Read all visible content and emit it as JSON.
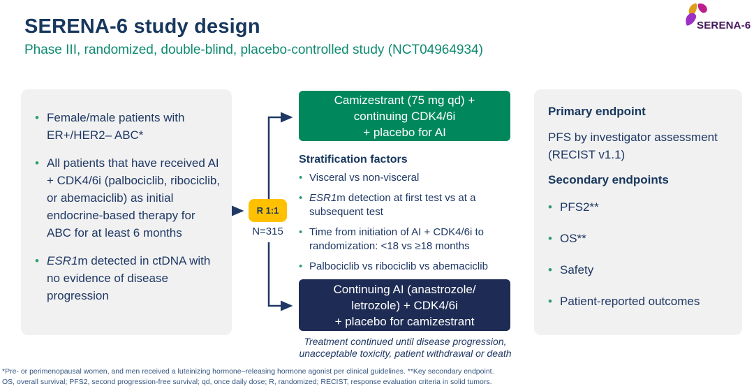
{
  "colors": {
    "title": "#17375D",
    "subtitle": "#0E8A70",
    "body-text": "#1F3864",
    "green-box": "#00885C",
    "navy-box": "#1E2C55",
    "r-box": "#FFC000",
    "panel-bg": "#F1F1F1",
    "bullet": "#2E9E6E",
    "arrow": "#1F3864",
    "arm-text": "#FFFFFF",
    "footnote": "#33557F",
    "logo-text": "#44175B",
    "petal-gold": "#DD9F1B",
    "petal-magenta": "#BE1E8C",
    "petal-purple": "#9C2FC4"
  },
  "header": {
    "title": "SERENA-6 study design",
    "subtitle": "Phase III, randomized, double-blind, placebo-controlled study (NCT04964934)"
  },
  "logo": {
    "label": "SERENA-6"
  },
  "eligibility_panel": {
    "items": [
      [
        {
          "t": "Female/male patients with ER+/HER2– ABC*"
        }
      ],
      [
        {
          "t": "All patients that have received AI + CDK4/6i (palbociclib, ribociclib, or abemaciclib) as initial endocrine-based therapy for ABC for at least 6 months"
        }
      ],
      [
        {
          "t": "ESR1",
          "i": true
        },
        {
          "t": "m detected in ctDNA with no evidence of disease progression"
        }
      ]
    ]
  },
  "randomization": {
    "r_label": "R 1:1",
    "n_label": "N=315"
  },
  "arms": {
    "camizestrant": "Camizestrant (75 mg qd) +\ncontinuing CDK4/6i\n+ placebo for AI",
    "control": "Continuing AI (anastrozole/\nletrozole) + CDK4/6i\n+ placebo for camizestrant",
    "treatment_note": "Treatment continued until disease progression,\nunacceptable toxicity, patient withdrawal or death"
  },
  "stratification": {
    "heading": "Stratification factors",
    "items": [
      [
        {
          "t": "Visceral vs non-visceral"
        }
      ],
      [
        {
          "t": "ESR1",
          "i": true
        },
        {
          "t": "m detection at first test vs at a subsequent test"
        }
      ],
      [
        {
          "t": "Time from initiation of AI + CDK4/6i to randomization: <18 vs ≥18 months"
        }
      ],
      [
        {
          "t": "Palbociclib vs ribociclib vs abemaciclib"
        }
      ]
    ]
  },
  "endpoints_panel": {
    "primary_heading": "Primary endpoint",
    "primary_text": "PFS by investigator assessment (RECIST v1.1)",
    "secondary_heading": "Secondary endpoints",
    "items": [
      "PFS2**",
      "OS**",
      "Safety",
      "Patient-reported outcomes"
    ]
  },
  "footnotes": {
    "line1": "*Pre- or perimenopausal women, and men received a luteinizing hormone–releasing hormone agonist per clinical guidelines. **Key secondary endpoint.",
    "line2": "OS, overall survival; PFS2, second progression-free survival; qd, once daily dose; R, randomized; RECIST, response evaluation criteria in solid tumors."
  }
}
